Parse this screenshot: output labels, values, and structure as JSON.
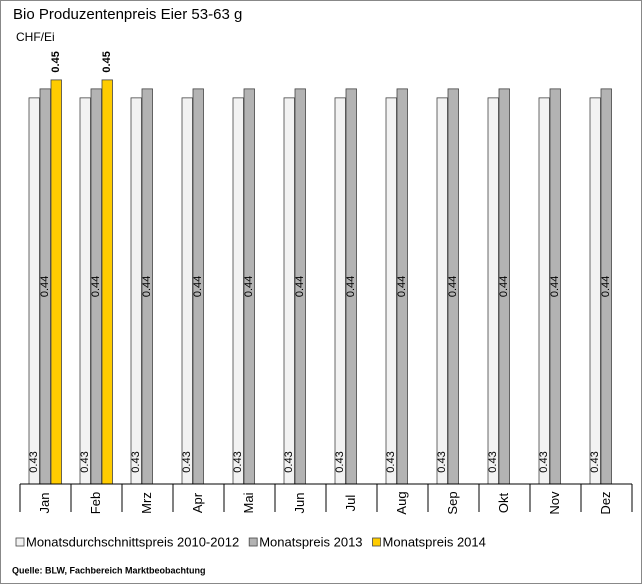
{
  "chart_data": {
    "type": "bar",
    "title": "Bio Produzentenpreis Eier 53-63 g",
    "y_label": "CHF/Ei",
    "source": "Quelle: BLW, Fachbereich Marktbeobachtung",
    "categories": [
      "Jan",
      "Feb",
      "Mrz",
      "Apr",
      "Mai",
      "Jun",
      "Jul",
      "Aug",
      "Sep",
      "Okt",
      "Nov",
      "Dez"
    ],
    "series": [
      {
        "name": "Monatsdurchschnittspreis 2010-2012",
        "color": "#f2f2f2",
        "values": [
          0.43,
          0.43,
          0.43,
          0.43,
          0.43,
          0.43,
          0.43,
          0.43,
          0.43,
          0.43,
          0.43,
          0.43
        ]
      },
      {
        "name": "Monatspreis 2013",
        "color": "#b3b3b3",
        "values": [
          0.44,
          0.44,
          0.44,
          0.44,
          0.44,
          0.44,
          0.44,
          0.44,
          0.44,
          0.44,
          0.44,
          0.44
        ]
      },
      {
        "name": "Monatspreis 2014",
        "color": "#ffcc00",
        "values": [
          0.45,
          0.45,
          null,
          null,
          null,
          null,
          null,
          null,
          null,
          null,
          null,
          null
        ]
      }
    ],
    "ylim": [
      0,
      0.5
    ]
  }
}
